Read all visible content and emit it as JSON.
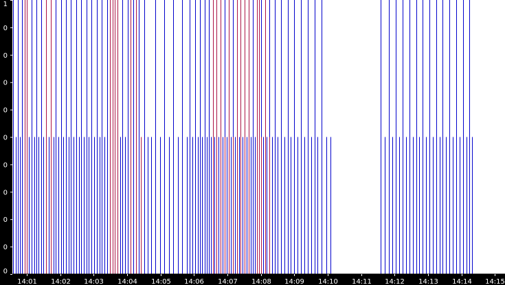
{
  "chart_data": {
    "type": "event-timeline",
    "x_ticks": [
      "14:01",
      "14:02",
      "14:03",
      "14:04",
      "14:05",
      "14:06",
      "14:07",
      "14:08",
      "14:09",
      "14:10",
      "14:11",
      "14:12",
      "14:13",
      "14:14",
      "14:15"
    ],
    "x_tick_minutes": [
      1,
      2,
      3,
      4,
      5,
      6,
      7,
      8,
      9,
      10,
      11,
      12,
      13,
      14,
      15
    ],
    "xlim_minutes": [
      0.57,
      15.3
    ],
    "y_tick_labels": [
      "1",
      "0",
      "0",
      "0",
      "0",
      "0",
      "0",
      "0",
      "0",
      "0",
      "0"
    ],
    "ylim": [
      0,
      1
    ],
    "grid": false,
    "series": [
      {
        "color": "#0000cc",
        "events": [
          {
            "t": 0.6,
            "level": 1
          },
          {
            "t": 0.67,
            "level": 0.5
          },
          {
            "t": 0.74,
            "level": 1
          },
          {
            "t": 0.8,
            "level": 0.5
          },
          {
            "t": 0.86,
            "level": 1
          },
          {
            "t": 0.93,
            "level": 0.5
          },
          {
            "t": 1.0,
            "level": 1
          },
          {
            "t": 1.07,
            "level": 0.5
          },
          {
            "t": 1.14,
            "level": 1
          },
          {
            "t": 1.22,
            "level": 0.5
          },
          {
            "t": 1.29,
            "level": 1
          },
          {
            "t": 1.36,
            "level": 0.5
          },
          {
            "t": 1.43,
            "level": 1
          },
          {
            "t": 1.5,
            "level": 0.5
          },
          {
            "t": 1.57,
            "level": 1
          },
          {
            "t": 1.65,
            "level": 0.5
          },
          {
            "t": 1.72,
            "level": 1
          },
          {
            "t": 1.8,
            "level": 0.5
          },
          {
            "t": 1.87,
            "level": 1
          },
          {
            "t": 1.95,
            "level": 0.5
          },
          {
            "t": 2.02,
            "level": 1
          },
          {
            "t": 2.1,
            "level": 0.5
          },
          {
            "t": 2.17,
            "level": 1
          },
          {
            "t": 2.25,
            "level": 0.5
          },
          {
            "t": 2.32,
            "level": 1
          },
          {
            "t": 2.4,
            "level": 0.5
          },
          {
            "t": 2.48,
            "level": 1
          },
          {
            "t": 2.56,
            "level": 0.5
          },
          {
            "t": 2.63,
            "level": 1
          },
          {
            "t": 2.71,
            "level": 0.5
          },
          {
            "t": 2.79,
            "level": 1
          },
          {
            "t": 2.86,
            "level": 0.5
          },
          {
            "t": 2.94,
            "level": 1
          },
          {
            "t": 3.02,
            "level": 0.5
          },
          {
            "t": 3.1,
            "level": 1
          },
          {
            "t": 3.17,
            "level": 0.5
          },
          {
            "t": 3.25,
            "level": 1
          },
          {
            "t": 3.33,
            "level": 0.5
          },
          {
            "t": 3.41,
            "level": 1
          },
          {
            "t": 3.48,
            "level": 0.5
          },
          {
            "t": 3.56,
            "level": 1
          },
          {
            "t": 3.63,
            "level": 0.5
          },
          {
            "t": 3.71,
            "level": 1
          },
          {
            "t": 3.79,
            "level": 0.5
          },
          {
            "t": 3.86,
            "level": 1
          },
          {
            "t": 3.94,
            "level": 0.5
          },
          {
            "t": 4.02,
            "level": 1
          },
          {
            "t": 4.1,
            "level": 0.5
          },
          {
            "t": 4.18,
            "level": 1
          },
          {
            "t": 4.26,
            "level": 0.5
          },
          {
            "t": 4.34,
            "level": 1
          },
          {
            "t": 4.42,
            "level": 0.5
          },
          {
            "t": 4.52,
            "level": 1
          },
          {
            "t": 4.62,
            "level": 0.5
          },
          {
            "t": 4.72,
            "level": 0.5
          },
          {
            "t": 4.85,
            "level": 1
          },
          {
            "t": 4.98,
            "level": 0.5
          },
          {
            "t": 5.12,
            "level": 1
          },
          {
            "t": 5.25,
            "level": 0.5
          },
          {
            "t": 5.38,
            "level": 1
          },
          {
            "t": 5.52,
            "level": 0.5
          },
          {
            "t": 5.65,
            "level": 1
          },
          {
            "t": 5.78,
            "level": 0.5
          },
          {
            "t": 5.88,
            "level": 1
          },
          {
            "t": 5.96,
            "level": 0.5
          },
          {
            "t": 6.04,
            "level": 1
          },
          {
            "t": 6.11,
            "level": 0.5
          },
          {
            "t": 6.18,
            "level": 1
          },
          {
            "t": 6.25,
            "level": 0.5
          },
          {
            "t": 6.32,
            "level": 1
          },
          {
            "t": 6.38,
            "level": 0.5
          },
          {
            "t": 6.44,
            "level": 1
          },
          {
            "t": 6.5,
            "level": 0.5
          },
          {
            "t": 6.56,
            "level": 1
          },
          {
            "t": 6.62,
            "level": 0.5
          },
          {
            "t": 6.68,
            "level": 1
          },
          {
            "t": 6.74,
            "level": 0.5
          },
          {
            "t": 6.8,
            "level": 1
          },
          {
            "t": 6.86,
            "level": 0.5
          },
          {
            "t": 6.92,
            "level": 1
          },
          {
            "t": 6.98,
            "level": 0.5
          },
          {
            "t": 7.04,
            "level": 1
          },
          {
            "t": 7.1,
            "level": 0.5
          },
          {
            "t": 7.16,
            "level": 1
          },
          {
            "t": 7.22,
            "level": 0.5
          },
          {
            "t": 7.28,
            "level": 1
          },
          {
            "t": 7.34,
            "level": 0.5
          },
          {
            "t": 7.4,
            "level": 1
          },
          {
            "t": 7.46,
            "level": 0.5
          },
          {
            "t": 7.52,
            "level": 1
          },
          {
            "t": 7.58,
            "level": 0.5
          },
          {
            "t": 7.64,
            "level": 1
          },
          {
            "t": 7.7,
            "level": 0.5
          },
          {
            "t": 7.76,
            "level": 1
          },
          {
            "t": 7.82,
            "level": 0.5
          },
          {
            "t": 7.88,
            "level": 1
          },
          {
            "t": 7.94,
            "level": 0.5
          },
          {
            "t": 8.0,
            "level": 1
          },
          {
            "t": 8.06,
            "level": 0.5
          },
          {
            "t": 8.12,
            "level": 1
          },
          {
            "t": 8.18,
            "level": 0.5
          },
          {
            "t": 8.25,
            "level": 1
          },
          {
            "t": 8.33,
            "level": 0.5
          },
          {
            "t": 8.41,
            "level": 1
          },
          {
            "t": 8.5,
            "level": 0.5
          },
          {
            "t": 8.6,
            "level": 1
          },
          {
            "t": 8.7,
            "level": 0.5
          },
          {
            "t": 8.8,
            "level": 1
          },
          {
            "t": 8.9,
            "level": 0.5
          },
          {
            "t": 9.0,
            "level": 1
          },
          {
            "t": 9.1,
            "level": 0.5
          },
          {
            "t": 9.2,
            "level": 1
          },
          {
            "t": 9.3,
            "level": 0.5
          },
          {
            "t": 9.4,
            "level": 1
          },
          {
            "t": 9.5,
            "level": 0.5
          },
          {
            "t": 9.6,
            "level": 1
          },
          {
            "t": 9.7,
            "level": 0.5
          },
          {
            "t": 9.82,
            "level": 1
          },
          {
            "t": 9.95,
            "level": 0.5
          },
          {
            "t": 10.08,
            "level": 0.5
          },
          {
            "t": 11.58,
            "level": 1
          },
          {
            "t": 11.7,
            "level": 0.5
          },
          {
            "t": 11.82,
            "level": 1
          },
          {
            "t": 11.93,
            "level": 0.5
          },
          {
            "t": 12.04,
            "level": 1
          },
          {
            "t": 12.14,
            "level": 0.5
          },
          {
            "t": 12.24,
            "level": 1
          },
          {
            "t": 12.34,
            "level": 0.5
          },
          {
            "t": 12.44,
            "level": 1
          },
          {
            "t": 12.54,
            "level": 0.5
          },
          {
            "t": 12.64,
            "level": 1
          },
          {
            "t": 12.74,
            "level": 0.5
          },
          {
            "t": 12.84,
            "level": 1
          },
          {
            "t": 12.94,
            "level": 0.5
          },
          {
            "t": 13.04,
            "level": 1
          },
          {
            "t": 13.14,
            "level": 0.5
          },
          {
            "t": 13.24,
            "level": 1
          },
          {
            "t": 13.34,
            "level": 0.5
          },
          {
            "t": 13.44,
            "level": 1
          },
          {
            "t": 13.54,
            "level": 0.5
          },
          {
            "t": 13.64,
            "level": 1
          },
          {
            "t": 13.74,
            "level": 0.5
          },
          {
            "t": 13.84,
            "level": 1
          },
          {
            "t": 13.94,
            "level": 0.5
          },
          {
            "t": 14.04,
            "level": 1
          },
          {
            "t": 14.14,
            "level": 0.5
          },
          {
            "t": 14.24,
            "level": 1
          },
          {
            "t": 14.32,
            "level": 0.5
          }
        ]
      },
      {
        "color": "#aa1144",
        "events": [
          {
            "t": 0.93,
            "level": 1
          },
          {
            "t": 1.0,
            "level": 1
          },
          {
            "t": 1.57,
            "level": 1
          },
          {
            "t": 1.72,
            "level": 1
          },
          {
            "t": 3.49,
            "level": 1
          },
          {
            "t": 3.56,
            "level": 1
          },
          {
            "t": 3.63,
            "level": 1
          },
          {
            "t": 3.71,
            "level": 1
          },
          {
            "t": 4.1,
            "level": 1
          },
          {
            "t": 4.26,
            "level": 1
          },
          {
            "t": 4.42,
            "level": 0.5
          },
          {
            "t": 6.56,
            "level": 1
          },
          {
            "t": 6.68,
            "level": 1
          },
          {
            "t": 6.8,
            "level": 1
          },
          {
            "t": 6.92,
            "level": 0.5
          },
          {
            "t": 7.04,
            "level": 1
          },
          {
            "t": 7.16,
            "level": 0.5
          },
          {
            "t": 7.28,
            "level": 1
          },
          {
            "t": 7.4,
            "level": 1
          },
          {
            "t": 7.52,
            "level": 1
          },
          {
            "t": 7.64,
            "level": 1
          },
          {
            "t": 7.88,
            "level": 1
          },
          {
            "t": 7.94,
            "level": 1
          },
          {
            "t": 8.0,
            "level": 0.5
          },
          {
            "t": 8.12,
            "level": 1
          },
          {
            "t": 8.25,
            "level": 0.5
          }
        ]
      }
    ]
  }
}
